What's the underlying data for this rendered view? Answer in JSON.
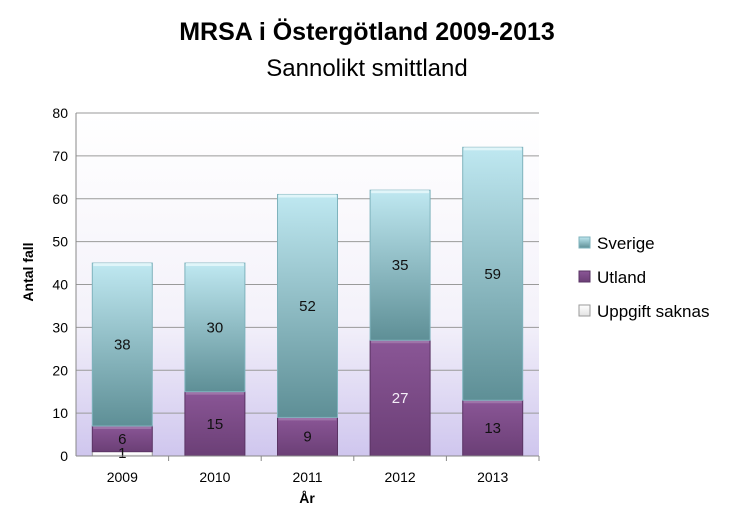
{
  "chart_data": {
    "type": "bar",
    "stacked": true,
    "title": "MRSA i Östergötland 2009-2013",
    "subtitle": "Sannolikt smittland",
    "xlabel": "År",
    "ylabel": "Antal fall",
    "ylim": [
      0,
      80
    ],
    "yticks": [
      0,
      10,
      20,
      30,
      40,
      50,
      60,
      70,
      80
    ],
    "grid": true,
    "legend_position": "right",
    "categories": [
      "2009",
      "2010",
      "2011",
      "2012",
      "2013"
    ],
    "series": [
      {
        "name": "Uppgift saknas",
        "values": [
          1,
          0,
          0,
          0,
          0
        ],
        "color": "#f4f4f4"
      },
      {
        "name": "Utland",
        "values": [
          6,
          15,
          9,
          27,
          13
        ],
        "color": "#7b4a86"
      },
      {
        "name": "Sverige",
        "values": [
          38,
          30,
          52,
          35,
          59
        ],
        "color": "#8cc4cf"
      }
    ]
  }
}
